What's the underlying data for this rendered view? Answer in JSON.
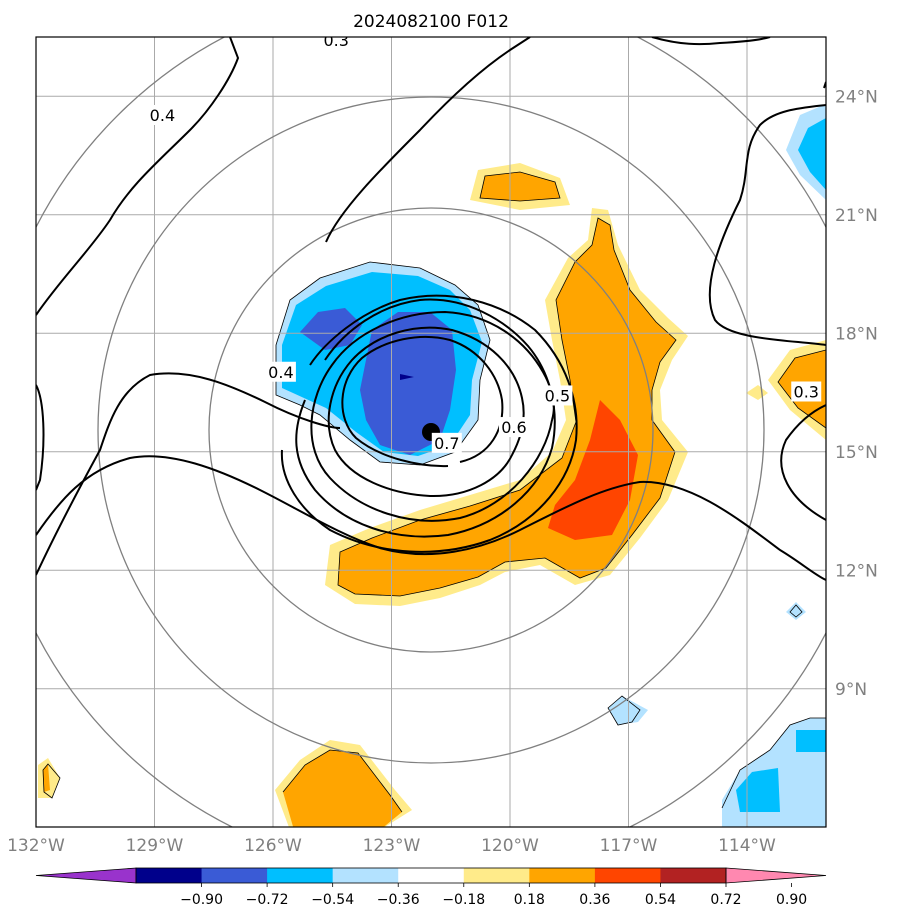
{
  "chart_data": {
    "type": "contour-map",
    "title": "2024082100 F012",
    "x_axis": {
      "ticks": [
        {
          "value": -132,
          "label": "132°W"
        },
        {
          "value": -129,
          "label": "129°W"
        },
        {
          "value": -126,
          "label": "126°W"
        },
        {
          "value": -123,
          "label": "123°W"
        },
        {
          "value": -120,
          "label": "120°W"
        },
        {
          "value": -117,
          "label": "117°W"
        },
        {
          "value": -114,
          "label": "114°W"
        }
      ],
      "range": [
        -132,
        -112
      ]
    },
    "y_axis": {
      "ticks": [
        {
          "value": 9,
          "label": "9°N"
        },
        {
          "value": 12,
          "label": "12°N"
        },
        {
          "value": 15,
          "label": "15°N"
        },
        {
          "value": 18,
          "label": "18°N"
        },
        {
          "value": 21,
          "label": "21°N"
        },
        {
          "value": 24,
          "label": "24°N"
        }
      ],
      "range": [
        5.5,
        25.5
      ],
      "position": "right"
    },
    "grid": true,
    "colorbar": {
      "orientation": "horizontal",
      "placement": "bottom",
      "extend": "both",
      "levels": [
        -0.9,
        -0.72,
        -0.54,
        -0.36,
        -0.18,
        0.18,
        0.36,
        0.54,
        0.72,
        0.9
      ],
      "tick_labels": [
        "−0.90",
        "−0.72",
        "−0.54",
        "−0.36",
        "−0.18",
        "0.18",
        "0.36",
        "0.54",
        "0.72",
        "0.90"
      ],
      "colors": [
        "#9933cc",
        "#00008b",
        "#3a5bd6",
        "#00bfff",
        "#b3e2ff",
        "#ffffff",
        "#ffeb8a",
        "#ffa500",
        "#ff4500",
        "#b22222",
        "#ff88b0"
      ]
    },
    "contour_labels": [
      {
        "text": "0.3",
        "lon": -124.4,
        "lat": 25.4
      },
      {
        "text": "0.4",
        "lon": -128.8,
        "lat": 23.5
      },
      {
        "text": "0.4",
        "lon": -125.8,
        "lat": 17.0
      },
      {
        "text": "0.5",
        "lon": -118.8,
        "lat": 16.4
      },
      {
        "text": "0.6",
        "lon": -119.9,
        "lat": 15.6
      },
      {
        "text": "0.7",
        "lon": -121.6,
        "lat": 15.2
      },
      {
        "text": "0.3",
        "lon": -112.5,
        "lat": 16.5
      }
    ],
    "center_marker": {
      "lon": -122.3,
      "lat": 16.1
    },
    "range_rings_center": {
      "lon": -122.3,
      "lat": 16.1
    }
  }
}
